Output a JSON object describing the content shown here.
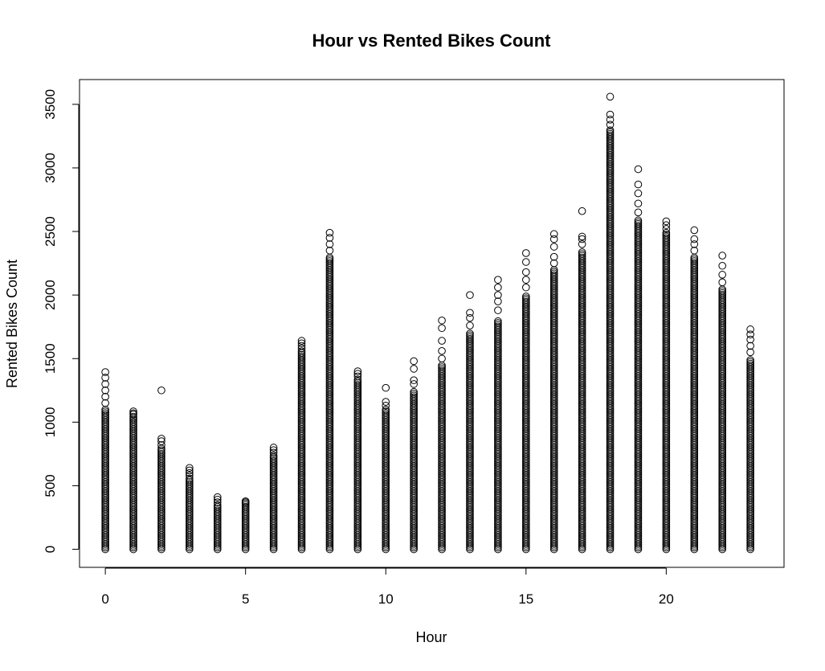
{
  "chart_data": {
    "type": "scatter",
    "title": "Hour vs Rented Bikes Count",
    "xlabel": "Hour",
    "ylabel": "Rented Bikes Count",
    "xlim": [
      -0.92,
      24.2
    ],
    "ylim": [
      -142,
      3695
    ],
    "xticks": [
      0,
      5,
      10,
      15,
      20
    ],
    "yticks": [
      0,
      500,
      1000,
      1500,
      2000,
      2500,
      3000,
      3500
    ],
    "marker": "open-circle",
    "grid": false,
    "legend": "none",
    "hours": [
      {
        "x": 0,
        "min": 0,
        "dense_max": 1100,
        "max": 1394,
        "outliers": [
          1150,
          1200,
          1250,
          1300,
          1350,
          1394
        ]
      },
      {
        "x": 1,
        "min": 0,
        "dense_max": 1050,
        "max": 1085,
        "outliers": [
          1060,
          1070,
          1085
        ]
      },
      {
        "x": 2,
        "min": 0,
        "dense_max": 800,
        "max": 1250,
        "outliers": [
          820,
          850,
          870,
          1250
        ]
      },
      {
        "x": 3,
        "min": 0,
        "dense_max": 560,
        "max": 640,
        "outliers": [
          580,
          600,
          620,
          640
        ]
      },
      {
        "x": 4,
        "min": 0,
        "dense_max": 350,
        "max": 410,
        "outliers": [
          370,
          390,
          410
        ]
      },
      {
        "x": 5,
        "min": 0,
        "dense_max": 350,
        "max": 378,
        "outliers": [
          360,
          370,
          378
        ]
      },
      {
        "x": 6,
        "min": 0,
        "dense_max": 740,
        "max": 800,
        "outliers": [
          760,
          780,
          800
        ]
      },
      {
        "x": 7,
        "min": 0,
        "dense_max": 1560,
        "max": 1640,
        "outliers": [
          1580,
          1600,
          1620,
          1640
        ]
      },
      {
        "x": 8,
        "min": 0,
        "dense_max": 2300,
        "max": 2490,
        "outliers": [
          2350,
          2400,
          2450,
          2490
        ]
      },
      {
        "x": 9,
        "min": 0,
        "dense_max": 1340,
        "max": 1400,
        "outliers": [
          1360,
          1380,
          1400
        ]
      },
      {
        "x": 10,
        "min": 0,
        "dense_max": 1100,
        "max": 1270,
        "outliers": [
          1130,
          1160,
          1270
        ]
      },
      {
        "x": 11,
        "min": 0,
        "dense_max": 1250,
        "max": 1480,
        "outliers": [
          1300,
          1330,
          1420,
          1480
        ]
      },
      {
        "x": 12,
        "min": 0,
        "dense_max": 1450,
        "max": 1800,
        "outliers": [
          1500,
          1560,
          1640,
          1740,
          1800
        ]
      },
      {
        "x": 13,
        "min": 0,
        "dense_max": 1700,
        "max": 2000,
        "outliers": [
          1760,
          1820,
          1860,
          2000
        ]
      },
      {
        "x": 14,
        "min": 0,
        "dense_max": 1800,
        "max": 2120,
        "outliers": [
          1880,
          1950,
          2000,
          2060,
          2120
        ]
      },
      {
        "x": 15,
        "min": 0,
        "dense_max": 2000,
        "max": 2330,
        "outliers": [
          2060,
          2120,
          2180,
          2260,
          2330
        ]
      },
      {
        "x": 16,
        "min": 0,
        "dense_max": 2200,
        "max": 2480,
        "outliers": [
          2250,
          2300,
          2380,
          2440,
          2480
        ]
      },
      {
        "x": 17,
        "min": 0,
        "dense_max": 2350,
        "max": 2660,
        "outliers": [
          2400,
          2440,
          2460,
          2660
        ]
      },
      {
        "x": 18,
        "min": 0,
        "dense_max": 3300,
        "max": 3560,
        "outliers": [
          3340,
          3380,
          3420,
          3560
        ]
      },
      {
        "x": 19,
        "min": 0,
        "dense_max": 2600,
        "max": 2990,
        "outliers": [
          2650,
          2720,
          2800,
          2870,
          2990
        ]
      },
      {
        "x": 20,
        "min": 0,
        "dense_max": 2500,
        "max": 2580,
        "outliers": [
          2520,
          2550,
          2580
        ]
      },
      {
        "x": 21,
        "min": 0,
        "dense_max": 2300,
        "max": 2510,
        "outliers": [
          2350,
          2400,
          2440,
          2510
        ]
      },
      {
        "x": 22,
        "min": 0,
        "dense_max": 2050,
        "max": 2310,
        "outliers": [
          2100,
          2160,
          2230,
          2310
        ]
      },
      {
        "x": 23,
        "min": 0,
        "dense_max": 1500,
        "max": 1730,
        "outliers": [
          1550,
          1600,
          1650,
          1690,
          1730
        ]
      }
    ]
  }
}
